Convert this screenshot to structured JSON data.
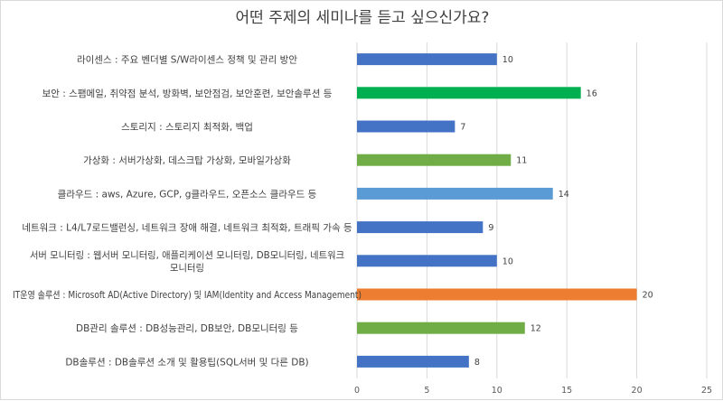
{
  "chart_data": {
    "type": "bar",
    "orientation": "horizontal",
    "title": "어떤 주제의 세미나를 듣고 싶으신가요?",
    "categories": [
      [
        "라이센스 : 주요 벤더별 S/W라이센스 정책 및 관리 방안"
      ],
      [
        "보안 : 스팸메일, 취약점 분석, 방화벽, 보안점검, 보안훈련, 보안솔루션 등"
      ],
      [
        "스토리지 : 스토리지 최적화, 백업"
      ],
      [
        "가상화 : 서버가상화, 데스크탑 가상화, 모바일가상화"
      ],
      [
        "클라우드 : aws, Azure, GCP, g클라우드, 오픈소스 클라우드 등"
      ],
      [
        "네트워크 : L4/L7로드밸런싱, 네트워크 장애 해결, 네트워크 최적화, 트래픽 가속 등"
      ],
      [
        "서버 모니터링 : 웹서버 모니터링, 애플리케이션 모니터링, DB모니터링, 네트워크",
        "모니터링"
      ],
      [
        "IT운영 솔루션 : Microsoft AD(Active Directory) 및 IAM(Identity and Access Management)"
      ],
      [
        "DB관리 솔루션 : DB성능관리, DB보안, DB모니터링 등"
      ],
      [
        "DB솔루션 : DB솔루션 소개 및 활용팁(SQL서버 및 다른 DB)"
      ]
    ],
    "values": [
      10,
      16,
      7,
      11,
      14,
      9,
      10,
      20,
      12,
      8
    ],
    "bar_colors": [
      "#4472c4",
      "#00b050",
      "#4472c4",
      "#70ad47",
      "#5b9bd5",
      "#4472c4",
      "#4472c4",
      "#ed7d31",
      "#70ad47",
      "#4472c4"
    ],
    "xlim": [
      0,
      25
    ],
    "xticks": [
      0,
      5,
      10,
      15,
      20,
      25
    ],
    "grid": true,
    "colors": {
      "grid": "#d9d9d9",
      "text": "#404040"
    }
  }
}
